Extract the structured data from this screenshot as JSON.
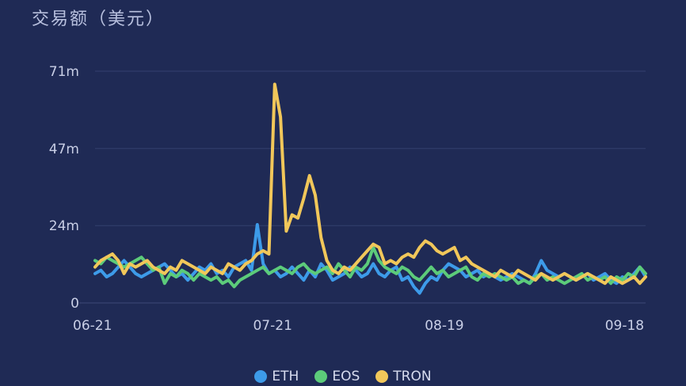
{
  "chart_data": {
    "type": "line",
    "title": "交易额（美元）",
    "xlabel": "",
    "ylabel": "",
    "x_start": "2018-06-21",
    "x_end": "2018-09-22",
    "x_tick_labels": [
      "06-21",
      "07-21",
      "08-19",
      "09-18"
    ],
    "x_tick_dates": [
      "2018-06-21",
      "2018-07-21",
      "2018-08-19",
      "2018-09-18"
    ],
    "y_tick_labels": [
      "0",
      "24m",
      "47m",
      "71m"
    ],
    "y_tick_values": [
      0,
      23.7,
      47.3,
      71
    ],
    "ylim": [
      0,
      71
    ],
    "grid": "horizontal",
    "legend": "bottom-center",
    "series": [
      {
        "name": "ETH",
        "color": "#3d9be9",
        "values": [
          9,
          10,
          8,
          9,
          11,
          13,
          11,
          9,
          8,
          9,
          10,
          11,
          12,
          10,
          8,
          9,
          7,
          9,
          11,
          10,
          12,
          9,
          10,
          8,
          11,
          12,
          13,
          10,
          24,
          12,
          9,
          10,
          8,
          9,
          11,
          9,
          7,
          10,
          8,
          12,
          10,
          7,
          8,
          9,
          11,
          10,
          8,
          9,
          12,
          9,
          8,
          10,
          11,
          7,
          8,
          5,
          3,
          6,
          8,
          7,
          10,
          12,
          11,
          10,
          8,
          9,
          10,
          8,
          9,
          8,
          7,
          8,
          9,
          8,
          7,
          6,
          9,
          13,
          10,
          9,
          8,
          9,
          8,
          7,
          8,
          9,
          7,
          8,
          9,
          7,
          6,
          8,
          7,
          9,
          11,
          8
        ]
      },
      {
        "name": "EOS",
        "color": "#5ccb7a",
        "values": [
          13,
          12,
          14,
          13,
          12,
          11,
          12,
          13,
          14,
          12,
          10,
          11,
          6,
          9,
          8,
          10,
          9,
          7,
          9,
          8,
          7,
          8,
          6,
          7,
          5,
          7,
          8,
          9,
          10,
          11,
          9,
          10,
          11,
          10,
          9,
          11,
          12,
          10,
          9,
          10,
          11,
          9,
          12,
          10,
          8,
          11,
          10,
          12,
          17,
          13,
          11,
          10,
          9,
          11,
          10,
          8,
          7,
          9,
          11,
          9,
          10,
          8,
          9,
          10,
          11,
          8,
          7,
          9,
          8,
          9,
          8,
          7,
          8,
          6,
          7,
          6,
          8,
          9,
          7,
          8,
          7,
          6,
          7,
          8,
          9,
          7,
          8,
          7,
          8,
          6,
          8,
          7,
          9,
          8,
          11,
          9
        ]
      },
      {
        "name": "TRON",
        "color": "#f1c75a",
        "values": [
          11,
          13,
          14,
          15,
          13,
          9,
          12,
          11,
          12,
          13,
          11,
          10,
          9,
          11,
          10,
          13,
          12,
          11,
          10,
          9,
          11,
          10,
          9,
          12,
          11,
          10,
          12,
          13,
          15,
          16,
          15,
          67,
          57,
          22,
          27,
          26,
          32,
          39,
          33,
          20,
          13,
          10,
          9,
          11,
          10,
          12,
          14,
          16,
          18,
          17,
          12,
          13,
          12,
          14,
          15,
          14,
          17,
          19,
          18,
          16,
          15,
          16,
          17,
          13,
          14,
          12,
          11,
          10,
          9,
          8,
          10,
          9,
          8,
          10,
          9,
          8,
          7,
          9,
          8,
          7,
          8,
          9,
          8,
          7,
          8,
          9,
          8,
          7,
          6,
          8,
          7,
          6,
          7,
          8,
          6,
          8
        ]
      }
    ]
  }
}
